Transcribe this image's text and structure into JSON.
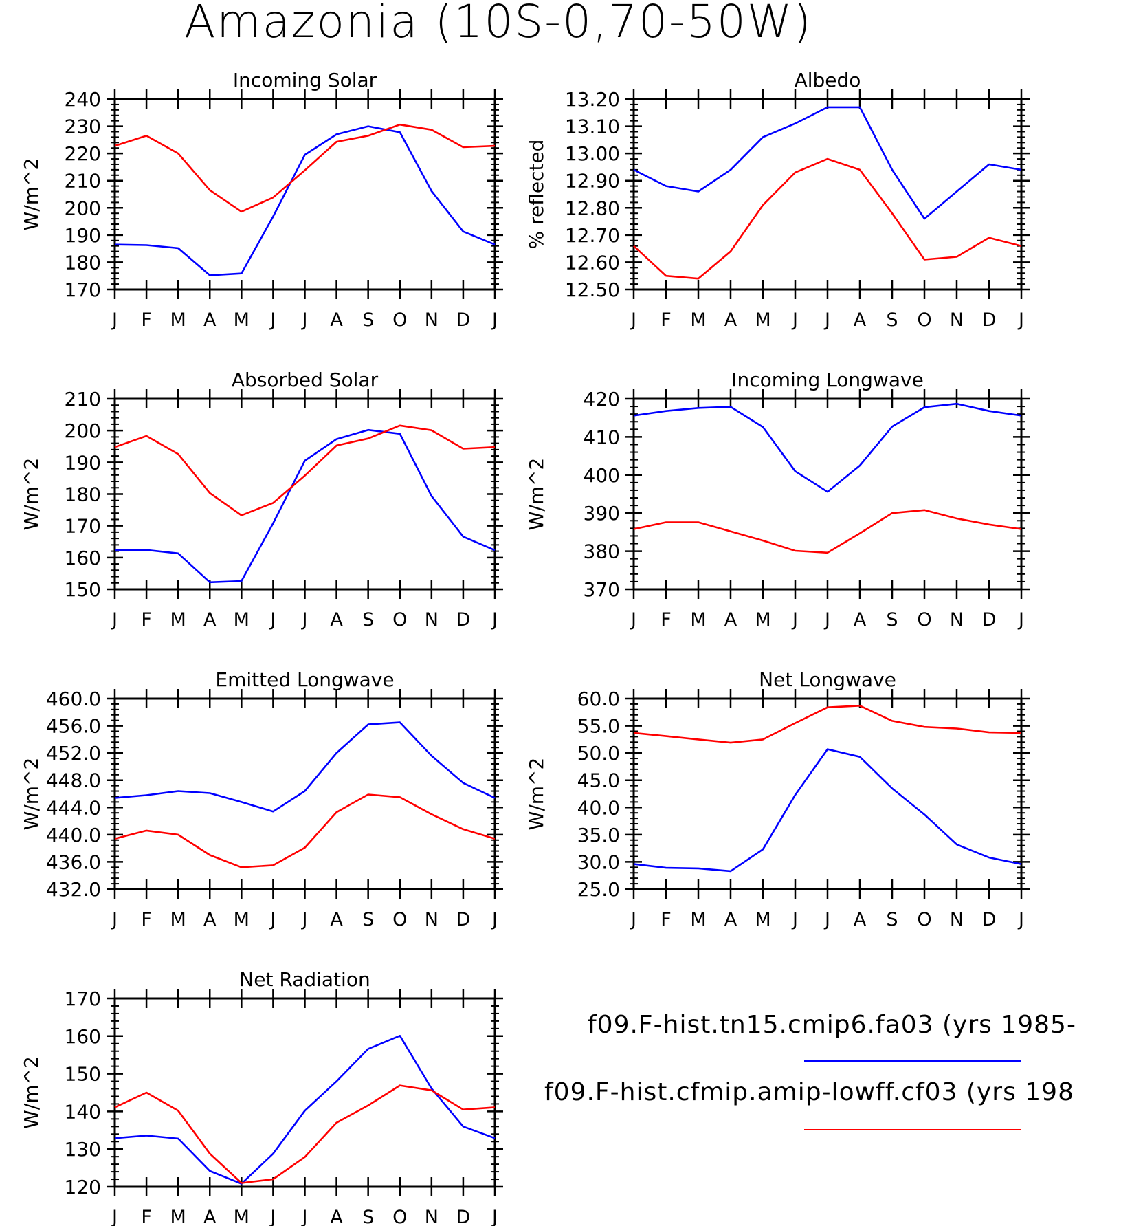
{
  "figure": {
    "title": "Amazonia (10S-0,70-50W)",
    "colors": {
      "series_1": "#0000ff",
      "series_2": "#ff0000"
    }
  },
  "legend": [
    {
      "label": "f09.F-hist.tn15.cmip6.fa03 (yrs 1985-",
      "color": "#0000ff"
    },
    {
      "label": "f09.F-hist.cfmip.amip-lowff.cf03 (yrs 198",
      "color": "#ff0000"
    }
  ],
  "chart_data": [
    {
      "type": "line",
      "title": "Incoming Solar",
      "ylabel": "W/m^2",
      "x": [
        "J",
        "F",
        "M",
        "A",
        "M",
        "J",
        "J",
        "A",
        "S",
        "O",
        "N",
        "D",
        "J"
      ],
      "ylim": [
        170,
        240
      ],
      "yticks": [
        "170",
        "180",
        "190",
        "200",
        "210",
        "220",
        "230",
        "240"
      ],
      "series": [
        {
          "color": "#0000ff",
          "values": [
            186.5,
            186.3,
            185.2,
            175.2,
            175.9,
            196.8,
            219.5,
            227.0,
            230.0,
            227.8,
            206.2,
            191.3,
            186.5
          ]
        },
        {
          "color": "#ff0000",
          "values": [
            222.8,
            226.5,
            220.0,
            206.5,
            198.6,
            203.8,
            213.8,
            224.3,
            226.5,
            230.6,
            228.7,
            222.3,
            222.8
          ]
        }
      ]
    },
    {
      "type": "line",
      "title": "Albedo",
      "ylabel": "% reflected",
      "x": [
        "J",
        "F",
        "M",
        "A",
        "M",
        "J",
        "J",
        "A",
        "S",
        "O",
        "N",
        "D",
        "J"
      ],
      "ylim": [
        12.5,
        13.2
      ],
      "yticks": [
        "12.50",
        "12.60",
        "12.70",
        "12.80",
        "12.90",
        "13.00",
        "13.10",
        "13.20"
      ],
      "series": [
        {
          "color": "#0000ff",
          "values": [
            12.94,
            12.88,
            12.86,
            12.94,
            13.06,
            13.11,
            13.17,
            13.17,
            12.94,
            12.76,
            12.86,
            12.96,
            12.94
          ]
        },
        {
          "color": "#ff0000",
          "values": [
            12.66,
            12.55,
            12.54,
            12.64,
            12.81,
            12.93,
            12.98,
            12.94,
            12.78,
            12.61,
            12.62,
            12.69,
            12.66
          ]
        }
      ]
    },
    {
      "type": "line",
      "title": "Absorbed Solar",
      "ylabel": "W/m^2",
      "x": [
        "J",
        "F",
        "M",
        "A",
        "M",
        "J",
        "J",
        "A",
        "S",
        "O",
        "N",
        "D",
        "J"
      ],
      "ylim": [
        150,
        210
      ],
      "yticks": [
        "150",
        "160",
        "170",
        "180",
        "190",
        "200",
        "210"
      ],
      "series": [
        {
          "color": "#0000ff",
          "values": [
            162.3,
            162.4,
            161.3,
            152.2,
            152.6,
            170.8,
            190.5,
            197.3,
            200.2,
            199.0,
            179.4,
            166.6,
            162.3
          ]
        },
        {
          "color": "#ff0000",
          "values": [
            194.8,
            198.3,
            192.6,
            180.3,
            173.3,
            177.2,
            185.8,
            195.3,
            197.5,
            201.6,
            200.1,
            194.3,
            194.8
          ]
        }
      ]
    },
    {
      "type": "line",
      "title": "Incoming Longwave",
      "ylabel": "W/m^2",
      "x": [
        "J",
        "F",
        "M",
        "A",
        "M",
        "J",
        "J",
        "A",
        "S",
        "O",
        "N",
        "D",
        "J"
      ],
      "ylim": [
        370,
        420
      ],
      "yticks": [
        "370",
        "380",
        "390",
        "400",
        "410",
        "420"
      ],
      "series": [
        {
          "color": "#0000ff",
          "values": [
            415.6,
            416.8,
            417.6,
            417.9,
            412.6,
            401.0,
            395.6,
            402.5,
            412.7,
            417.8,
            418.7,
            416.8,
            415.6
          ]
        },
        {
          "color": "#ff0000",
          "values": [
            385.8,
            387.6,
            387.6,
            385.2,
            382.8,
            380.1,
            379.6,
            384.7,
            390.0,
            390.8,
            388.6,
            387.0,
            385.8
          ]
        }
      ]
    },
    {
      "type": "line",
      "title": "Emitted Longwave",
      "ylabel": "W/m^2",
      "x": [
        "J",
        "F",
        "M",
        "A",
        "M",
        "J",
        "J",
        "A",
        "S",
        "O",
        "N",
        "D",
        "J"
      ],
      "ylim": [
        432,
        460
      ],
      "yticks": [
        "432.0",
        "436.0",
        "440.0",
        "444.0",
        "448.0",
        "452.0",
        "456.0",
        "460.0"
      ],
      "series": [
        {
          "color": "#0000ff",
          "values": [
            445.4,
            445.8,
            446.4,
            446.1,
            444.8,
            443.4,
            446.4,
            452.0,
            456.2,
            456.5,
            451.6,
            447.6,
            445.4
          ]
        },
        {
          "color": "#ff0000",
          "values": [
            439.4,
            440.6,
            440.0,
            437.0,
            435.2,
            435.5,
            438.1,
            443.3,
            445.9,
            445.5,
            443.0,
            440.8,
            439.4
          ]
        }
      ]
    },
    {
      "type": "line",
      "title": "Net Longwave",
      "ylabel": "W/m^2",
      "x": [
        "J",
        "F",
        "M",
        "A",
        "M",
        "J",
        "J",
        "A",
        "S",
        "O",
        "N",
        "D",
        "J"
      ],
      "ylim": [
        25,
        60
      ],
      "yticks": [
        "25.0",
        "30.0",
        "35.0",
        "40.0",
        "45.0",
        "50.0",
        "55.0",
        "60.0"
      ],
      "series": [
        {
          "color": "#0000ff",
          "values": [
            29.6,
            28.9,
            28.8,
            28.3,
            32.3,
            42.3,
            50.7,
            49.3,
            43.5,
            38.7,
            33.2,
            30.8,
            29.6
          ]
        },
        {
          "color": "#ff0000",
          "values": [
            53.7,
            53.1,
            52.5,
            51.9,
            52.5,
            55.5,
            58.4,
            58.7,
            55.9,
            54.8,
            54.5,
            53.8,
            53.7
          ]
        }
      ]
    },
    {
      "type": "line",
      "title": "Net Radiation",
      "ylabel": "W/m^2",
      "x": [
        "J",
        "F",
        "M",
        "A",
        "M",
        "J",
        "J",
        "A",
        "S",
        "O",
        "N",
        "D",
        "J"
      ],
      "ylim": [
        120,
        170
      ],
      "yticks": [
        "120",
        "130",
        "140",
        "150",
        "160",
        "170"
      ],
      "series": [
        {
          "color": "#0000ff",
          "values": [
            132.9,
            133.6,
            132.8,
            124.2,
            120.8,
            128.8,
            140.2,
            148.0,
            156.6,
            160.1,
            146.1,
            136.0,
            132.9
          ]
        },
        {
          "color": "#ff0000",
          "values": [
            141.1,
            145.0,
            140.2,
            128.8,
            121.0,
            122.0,
            127.9,
            137.0,
            141.6,
            146.9,
            145.6,
            140.5,
            141.1
          ]
        }
      ]
    }
  ]
}
